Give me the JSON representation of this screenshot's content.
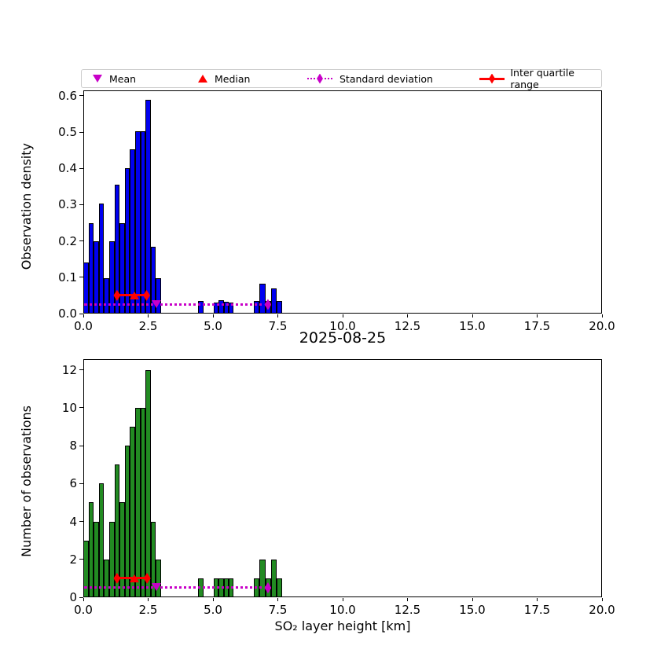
{
  "legend": {
    "items": [
      {
        "label": "Mean",
        "marker": "triangle-down-icon",
        "color": "#c800c8"
      },
      {
        "label": "Median",
        "marker": "triangle-up-icon",
        "color": "#ff0000"
      },
      {
        "label": "Standard deviation",
        "marker": "diamond-dotted-line-icon",
        "color": "#c800c8"
      },
      {
        "label": "Inter quartile range",
        "marker": "diamond-solid-line-icon",
        "color": "#ff0000"
      }
    ]
  },
  "chart_data": [
    {
      "type": "bar",
      "subtype": "histogram",
      "title": "",
      "xlabel": "",
      "ylabel": "Observation density",
      "xlim": [
        0,
        20
      ],
      "ylim": [
        0,
        0.615
      ],
      "grid": false,
      "colors": {
        "bar": "#0000f0",
        "edge": "#000000",
        "mean": "#c800c8",
        "median": "#ff0000",
        "iqr": "#ff0000",
        "std": "#c800c8"
      },
      "xticks": {
        "values": [
          0,
          2.5,
          5,
          7.5,
          10,
          12.5,
          15,
          17.5,
          20
        ],
        "labels": [
          "0.0",
          "2.5",
          "5.0",
          "7.5",
          "10.0",
          "12.5",
          "15.0",
          "17.5",
          "20.0"
        ]
      },
      "yticks": {
        "values": [
          0,
          0.1,
          0.2,
          0.3,
          0.4,
          0.5,
          0.6
        ],
        "labels": [
          "0.0",
          "0.1",
          "0.2",
          "0.3",
          "0.4",
          "0.5",
          "0.6"
        ]
      },
      "bars": [
        [
          0.0,
          0.2,
          0.141
        ],
        [
          0.2,
          0.2,
          0.25
        ],
        [
          0.4,
          0.2,
          0.199
        ],
        [
          0.6,
          0.2,
          0.304
        ],
        [
          0.8,
          0.2,
          0.097
        ],
        [
          1.0,
          0.2,
          0.199
        ],
        [
          1.2,
          0.2,
          0.356
        ],
        [
          1.4,
          0.2,
          0.25
        ],
        [
          1.6,
          0.2,
          0.401
        ],
        [
          1.8,
          0.2,
          0.452
        ],
        [
          2.0,
          0.2,
          0.502
        ],
        [
          2.2,
          0.2,
          0.502
        ],
        [
          2.4,
          0.2,
          0.589
        ],
        [
          2.6,
          0.2,
          0.183
        ],
        [
          2.8,
          0.2,
          0.097
        ],
        [
          4.42,
          0.21,
          0.035
        ],
        [
          5.03,
          0.19,
          0.031
        ],
        [
          5.22,
          0.19,
          0.037
        ],
        [
          5.41,
          0.19,
          0.033
        ],
        [
          5.6,
          0.19,
          0.031
        ],
        [
          6.58,
          0.22,
          0.035
        ],
        [
          6.8,
          0.22,
          0.083
        ],
        [
          7.02,
          0.22,
          0.035
        ],
        [
          7.24,
          0.22,
          0.07
        ],
        [
          7.46,
          0.22,
          0.035
        ]
      ],
      "stats": {
        "iqr_x1": 1.3,
        "iqr_x2": 2.44,
        "iqr_y": 0.05,
        "median_x": 1.97,
        "mean_x": 2.84,
        "mean_y": 0.027,
        "std_x1": 0.03,
        "std_x2": 7.12,
        "std_y": 0.025
      }
    },
    {
      "type": "bar",
      "subtype": "histogram",
      "title": "2025-08-25",
      "xlabel": "SO₂ layer height [km]",
      "ylabel": "Number of observations",
      "xlim": [
        0,
        20
      ],
      "ylim": [
        0,
        12.56
      ],
      "grid": false,
      "colors": {
        "bar": "#228b22",
        "edge": "#000000",
        "mean": "#c800c8",
        "median": "#ff0000",
        "iqr": "#ff0000",
        "std": "#c800c8"
      },
      "xticks": {
        "values": [
          0,
          2.5,
          5,
          7.5,
          10,
          12.5,
          15,
          17.5,
          20
        ],
        "labels": [
          "0.0",
          "2.5",
          "5.0",
          "7.5",
          "10.0",
          "12.5",
          "15.0",
          "17.5",
          "20.0"
        ]
      },
      "yticks": {
        "values": [
          0,
          2,
          4,
          6,
          8,
          10,
          12
        ],
        "labels": [
          "0",
          "2",
          "4",
          "6",
          "8",
          "10",
          "12"
        ]
      },
      "bars": [
        [
          0.0,
          0.2,
          3
        ],
        [
          0.2,
          0.2,
          5
        ],
        [
          0.4,
          0.2,
          4
        ],
        [
          0.6,
          0.2,
          6
        ],
        [
          0.8,
          0.2,
          2
        ],
        [
          1.0,
          0.2,
          4
        ],
        [
          1.2,
          0.2,
          7
        ],
        [
          1.4,
          0.2,
          5
        ],
        [
          1.6,
          0.2,
          8
        ],
        [
          1.8,
          0.2,
          9
        ],
        [
          2.0,
          0.2,
          10
        ],
        [
          2.2,
          0.2,
          10
        ],
        [
          2.4,
          0.2,
          12
        ],
        [
          2.6,
          0.2,
          4
        ],
        [
          2.8,
          0.2,
          2
        ],
        [
          4.42,
          0.21,
          1
        ],
        [
          5.03,
          0.19,
          1
        ],
        [
          5.22,
          0.19,
          1
        ],
        [
          5.41,
          0.19,
          1
        ],
        [
          5.6,
          0.19,
          1
        ],
        [
          6.58,
          0.22,
          1
        ],
        [
          6.8,
          0.22,
          2
        ],
        [
          7.02,
          0.22,
          1
        ],
        [
          7.24,
          0.22,
          2
        ],
        [
          7.46,
          0.22,
          1
        ]
      ],
      "stats": {
        "iqr_x1": 1.3,
        "iqr_x2": 2.46,
        "iqr_y": 1.0,
        "median_x": 1.97,
        "mean_x": 2.84,
        "mean_y": 0.55,
        "std_x1": 0.03,
        "std_x2": 7.12,
        "std_y": 0.5
      }
    }
  ]
}
